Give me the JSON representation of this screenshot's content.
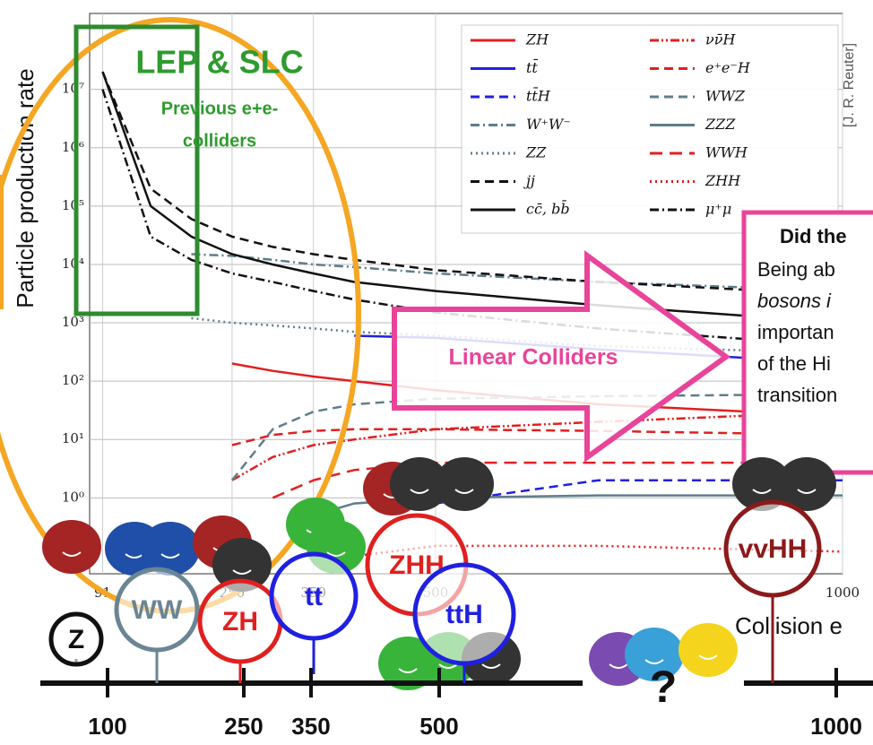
{
  "chart_data": {
    "type": "line",
    "x_label": "Collision e",
    "y_label": "Particle production rate",
    "x": [
      91,
      150,
      200,
      250,
      300,
      350,
      400,
      500,
      700,
      1000
    ],
    "xlim": [
      75,
      1000
    ],
    "xticks": [
      91,
      250,
      350,
      500,
      1000
    ],
    "ylim": [
      0.05,
      200000000
    ],
    "log_y": true,
    "grid": true,
    "yticks": [
      {
        "value": 1,
        "label": "10⁰"
      },
      {
        "value": 10,
        "label": "10¹"
      },
      {
        "value": 100,
        "label": "10²"
      },
      {
        "value": 1000,
        "label": "10³"
      },
      {
        "value": 10000,
        "label": "10⁴"
      },
      {
        "value": 100000,
        "label": "10⁵"
      },
      {
        "value": 1000000,
        "label": "10⁶"
      },
      {
        "value": 10000000,
        "label": "10⁷"
      }
    ],
    "series": [
      {
        "name": "ZH",
        "color": "#e02020",
        "style": "solid",
        "values": [
          null,
          null,
          null,
          200,
          150,
          120,
          100,
          70,
          40,
          25
        ]
      },
      {
        "name": "tt̄",
        "color": "#2020e0",
        "style": "solid",
        "values": [
          null,
          null,
          null,
          null,
          null,
          null,
          600,
          550,
          350,
          200
        ]
      },
      {
        "name": "tt̄H",
        "color": "#2020e0",
        "style": "dashed",
        "values": [
          null,
          null,
          null,
          null,
          null,
          null,
          null,
          0.8,
          2,
          2
        ]
      },
      {
        "name": "W⁺W⁻",
        "color": "#607d8b",
        "style": "dashdot",
        "values": [
          null,
          null,
          15000,
          14000,
          12000,
          10000,
          9000,
          7000,
          5000,
          3500
        ]
      },
      {
        "name": "ZZ",
        "color": "#607d8b",
        "style": "dotted",
        "values": [
          null,
          null,
          1200,
          1000,
          900,
          800,
          700,
          600,
          400,
          300
        ]
      },
      {
        "name": "jj",
        "color": "#111111",
        "style": "dashed",
        "values": [
          20000000,
          200000,
          60000,
          30000,
          20000,
          15000,
          12000,
          8000,
          5000,
          3000
        ]
      },
      {
        "name": "cc̄, bb̄",
        "color": "#111111",
        "style": "solid",
        "values": [
          20000000,
          100000,
          30000,
          15000,
          10000,
          7000,
          5000,
          3500,
          2000,
          1000
        ]
      },
      {
        "name": "νν̄H",
        "color": "#e02020",
        "style": "dashdotdot",
        "values": [
          null,
          null,
          null,
          2,
          5,
          8,
          10,
          15,
          20,
          30
        ]
      },
      {
        "name": "e⁺e⁻H",
        "color": "#e02020",
        "style": "dashed",
        "values": [
          null,
          null,
          null,
          8,
          12,
          14,
          15,
          15,
          14,
          12
        ]
      },
      {
        "name": "WWZ",
        "color": "#607d8b",
        "style": "dashed",
        "values": [
          null,
          null,
          null,
          2,
          15,
          30,
          40,
          50,
          55,
          60
        ]
      },
      {
        "name": "ZZZ",
        "color": "#607d8b",
        "style": "solid",
        "values": [
          null,
          null,
          null,
          null,
          null,
          0.5,
          0.8,
          1,
          1.1,
          1.1
        ]
      },
      {
        "name": "WWH",
        "color": "#e02020",
        "style": "longdash",
        "values": [
          null,
          null,
          null,
          null,
          1,
          2,
          3,
          4,
          4,
          4
        ]
      },
      {
        "name": "ZHH",
        "color": "#e02020",
        "style": "dotted",
        "values": [
          null,
          null,
          null,
          null,
          null,
          null,
          0.1,
          0.15,
          0.15,
          0.12
        ]
      },
      {
        "name": "μ⁺μ",
        "color": "#111111",
        "style": "dashdot",
        "values": [
          10000000,
          30000,
          12000,
          7000,
          5000,
          3500,
          2500,
          1500,
          800,
          400
        ]
      }
    ]
  },
  "slide": {
    "credit": "[J. R. Reuter]",
    "lep_title": "LEP & SLC",
    "lep_sub": [
      "Previous e+e-",
      "colliders"
    ],
    "arrow_text": "Linear Colliders",
    "box_lines": [
      "Did the",
      "Being ab",
      "bosons i",
      "importan",
      "of the Hi",
      "transition"
    ],
    "processes": [
      "Z",
      "WW",
      "ZH",
      "tt",
      "ZHH",
      "ttH",
      "vvHH"
    ],
    "timeline": [
      "100",
      "250",
      "350",
      "500",
      "1000"
    ],
    "question": "?"
  }
}
